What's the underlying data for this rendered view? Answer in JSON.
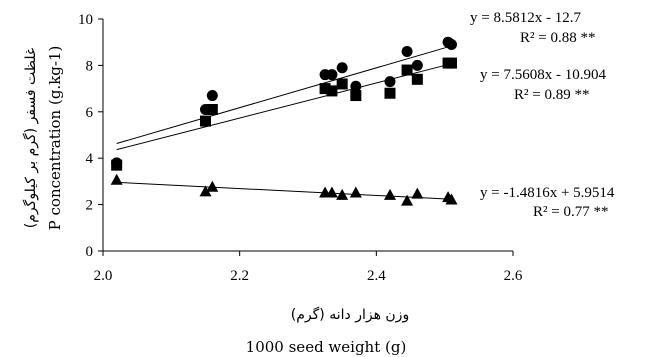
{
  "chart_data": {
    "type": "scatter",
    "xlabel": "1000 seed weight (g)",
    "xlabel_fa": "وزن هزار دانه (گرم)",
    "ylabel": "P concentration (g.kg-1)",
    "ylabel_fa": "غلظت فسفر (گرم بر کیلوگرم)",
    "xlim": [
      2.0,
      2.6
    ],
    "ylim": [
      0,
      10
    ],
    "x_ticks": [
      2.0,
      2.2,
      2.4,
      2.6
    ],
    "y_ticks": [
      0,
      2,
      4,
      6,
      8,
      10
    ],
    "x_tick_labels": [
      "2.0",
      "2.2",
      "2.4",
      "2.6"
    ],
    "y_tick_labels": [
      "0",
      "2",
      "4",
      "6",
      "8",
      "10"
    ],
    "grid": false,
    "series": [
      {
        "marker": "circle",
        "color": "#000000",
        "points": [
          [
            2.02,
            3.8
          ],
          [
            2.15,
            6.1
          ],
          [
            2.16,
            6.7
          ],
          [
            2.325,
            7.6
          ],
          [
            2.335,
            7.6
          ],
          [
            2.35,
            7.9
          ],
          [
            2.37,
            7.1
          ],
          [
            2.42,
            7.3
          ],
          [
            2.445,
            8.6
          ],
          [
            2.46,
            8.0
          ],
          [
            2.505,
            9.0
          ],
          [
            2.51,
            8.9
          ]
        ],
        "fit": {
          "slope": 8.5812,
          "intercept": -12.7
        },
        "equation": "y = 8.5812x - 12.7",
        "r2": "R² = 0.88 **"
      },
      {
        "marker": "square",
        "color": "#000000",
        "points": [
          [
            2.02,
            3.7
          ],
          [
            2.15,
            5.6
          ],
          [
            2.16,
            6.1
          ],
          [
            2.325,
            7.0
          ],
          [
            2.335,
            6.9
          ],
          [
            2.35,
            7.2
          ],
          [
            2.37,
            6.7
          ],
          [
            2.42,
            6.8
          ],
          [
            2.445,
            7.8
          ],
          [
            2.46,
            7.4
          ],
          [
            2.505,
            8.1
          ],
          [
            2.51,
            8.1
          ]
        ],
        "fit": {
          "slope": 7.5608,
          "intercept": -10.904
        },
        "equation": "y = 7.5608x - 10.904",
        "r2": "R² = 0.89 **"
      },
      {
        "marker": "triangle",
        "color": "#000000",
        "points": [
          [
            2.02,
            3.05
          ],
          [
            2.15,
            2.55
          ],
          [
            2.16,
            2.75
          ],
          [
            2.325,
            2.5
          ],
          [
            2.335,
            2.5
          ],
          [
            2.35,
            2.4
          ],
          [
            2.37,
            2.5
          ],
          [
            2.42,
            2.4
          ],
          [
            2.445,
            2.15
          ],
          [
            2.46,
            2.45
          ],
          [
            2.505,
            2.3
          ],
          [
            2.51,
            2.2
          ]
        ],
        "fit": {
          "slope": -1.4816,
          "intercept": 5.9514
        },
        "equation": "y = -1.4816x + 5.9514",
        "r2": "R² = 0.77 **"
      }
    ]
  }
}
